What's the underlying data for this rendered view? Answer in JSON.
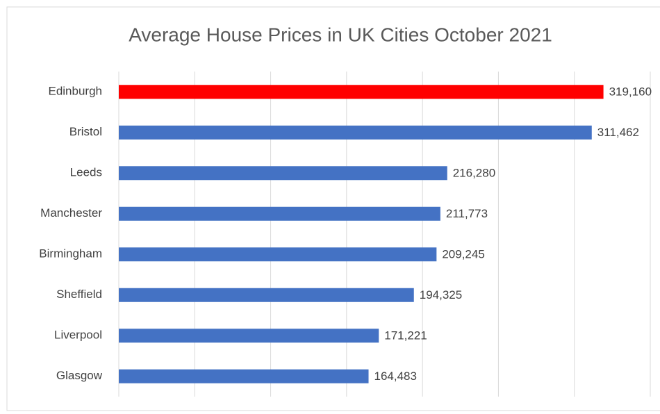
{
  "chart_data": {
    "type": "bar",
    "orientation": "horizontal",
    "title": "Average House Prices in UK Cities October 2021",
    "categories": [
      "Edinburgh",
      "Bristol",
      "Leeds",
      "Manchester",
      "Birmingham",
      "Sheffield",
      "Liverpool",
      "Glasgow"
    ],
    "values": [
      319160,
      311462,
      216280,
      211773,
      209245,
      194325,
      171221,
      164483
    ],
    "value_labels": [
      "319,160",
      "311,462",
      "216,280",
      "211,773",
      "209,245",
      "194,325",
      "171,221",
      "164,483"
    ],
    "colors": [
      "#ff0000",
      "#4472c4",
      "#4472c4",
      "#4472c4",
      "#4472c4",
      "#4472c4",
      "#4472c4",
      "#4472c4"
    ],
    "xlim": [
      0,
      350000
    ],
    "xticks": [
      0,
      50000,
      100000,
      150000,
      200000,
      250000,
      300000,
      350000
    ],
    "grid": true
  }
}
